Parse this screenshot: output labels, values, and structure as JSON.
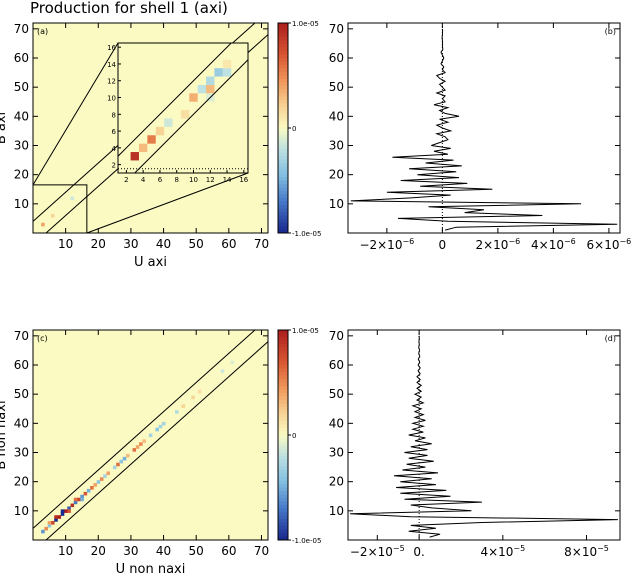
{
  "title": "Production for shell 1 (axi)",
  "chart_data": [
    {
      "id": "a",
      "type": "heatmap",
      "panel_label": "(a)",
      "xlabel": "U axi",
      "ylabel": "B axi",
      "xlim": [
        0,
        72
      ],
      "ylim": [
        0,
        72
      ],
      "ticks": [
        10,
        20,
        30,
        40,
        50,
        60,
        70
      ],
      "background_color": "#fafac2",
      "colorbar": {
        "max_label": "1.0e-05",
        "mid_label": "0",
        "min_label": "-1.0e-05",
        "range": [
          -1e-05,
          1e-05
        ]
      },
      "inset": {
        "xlim": [
          1,
          16.5
        ],
        "ylim": [
          1,
          16.5
        ],
        "ticks": [
          2,
          4,
          6,
          8,
          10,
          12,
          14,
          16
        ],
        "cells": [
          {
            "u": 3,
            "b": 3,
            "v": 9e-06
          },
          {
            "u": 4,
            "b": 4,
            "v": 3e-06
          },
          {
            "u": 5,
            "b": 5,
            "v": 5.5e-06
          },
          {
            "u": 6,
            "b": 6,
            "v": 2e-06
          },
          {
            "u": 7,
            "b": 7,
            "v": -1.5e-06
          },
          {
            "u": 9,
            "b": 8,
            "v": 1.5e-06
          },
          {
            "u": 10,
            "b": 10,
            "v": 3.5e-06
          },
          {
            "u": 11,
            "b": 11,
            "v": -2e-06
          },
          {
            "u": 12,
            "b": 11,
            "v": 3e-06
          },
          {
            "u": 12,
            "b": 12,
            "v": -2.5e-06
          },
          {
            "u": 13,
            "b": 13,
            "v": -3.5e-06
          },
          {
            "u": 14,
            "b": 13,
            "v": -2e-06
          },
          {
            "u": 14,
            "b": 14,
            "v": 1e-06
          },
          {
            "u": 12,
            "b": 10,
            "v": -1e-06
          }
        ]
      },
      "cells": [
        {
          "u": 3,
          "b": 3,
          "v": 4e-06
        },
        {
          "u": 6,
          "b": 6,
          "v": 2e-06
        },
        {
          "u": 12,
          "b": 12,
          "v": -1.5e-06
        }
      ]
    },
    {
      "id": "b",
      "type": "line",
      "panel_label": "(b)",
      "ylim": [
        0,
        72
      ],
      "xlim": [
        -3.4e-06,
        6.4e-06
      ],
      "y_ticks": [
        10,
        20,
        30,
        40,
        50,
        60,
        70
      ],
      "x_ticks": [
        {
          "value": -2e-06,
          "mantissa": "−2×10",
          "exp": "−6"
        },
        {
          "value": 0,
          "mantissa": "0",
          "exp": ""
        },
        {
          "value": 2e-06,
          "mantissa": "2×10",
          "exp": "−6"
        },
        {
          "value": 4e-06,
          "mantissa": "4×10",
          "exp": "−6"
        },
        {
          "value": 6e-06,
          "mantissa": "6×10",
          "exp": "−6"
        }
      ],
      "profile": [
        [
          1e-07,
          1
        ],
        [
          5e-07,
          2
        ],
        [
          6.3e-06,
          3
        ],
        [
          2e-07,
          4
        ],
        [
          -1.6e-06,
          5
        ],
        [
          3.6e-06,
          6
        ],
        [
          8e-07,
          7
        ],
        [
          1.5e-06,
          8
        ],
        [
          -5e-07,
          9
        ],
        [
          5e-06,
          10
        ],
        [
          -3.3e-06,
          11
        ],
        [
          -1.2e-06,
          12
        ],
        [
          3e-07,
          13
        ],
        [
          -2e-06,
          14
        ],
        [
          1.8e-06,
          15
        ],
        [
          -8e-07,
          16
        ],
        [
          9e-07,
          17
        ],
        [
          -1.5e-06,
          18
        ],
        [
          6e-07,
          19
        ],
        [
          -9e-07,
          20
        ],
        [
          5e-07,
          21
        ],
        [
          -1.2e-06,
          22
        ],
        [
          7e-07,
          23
        ],
        [
          -6e-07,
          24
        ],
        [
          4e-07,
          25
        ],
        [
          -1.8e-06,
          26
        ],
        [
          2e-07,
          27
        ],
        [
          -3e-07,
          28
        ],
        [
          3e-07,
          29
        ],
        [
          -4e-07,
          30
        ],
        [
          -1e-07,
          31
        ],
        [
          2e-07,
          32
        ],
        [
          1e-07,
          33
        ],
        [
          -2e-07,
          34
        ],
        [
          3e-07,
          35
        ],
        [
          0.0,
          36
        ],
        [
          -2e-07,
          37
        ],
        [
          2e-07,
          38
        ],
        [
          -1e-07,
          39
        ],
        [
          6e-07,
          40
        ],
        [
          1e-07,
          41
        ],
        [
          -1e-07,
          42
        ],
        [
          2e-07,
          43
        ],
        [
          -3e-07,
          44
        ],
        [
          1e-07,
          45
        ],
        [
          0.0,
          46
        ],
        [
          1e-07,
          47
        ],
        [
          -2e-07,
          48
        ],
        [
          1e-07,
          49
        ],
        [
          0.0,
          50
        ],
        [
          -1e-07,
          51
        ],
        [
          1e-07,
          52
        ],
        [
          -1e-07,
          53
        ],
        [
          -2e-07,
          54
        ],
        [
          1e-07,
          55
        ],
        [
          0.0,
          56
        ],
        [
          5e-08,
          57
        ],
        [
          -5e-08,
          58
        ],
        [
          0.0,
          59
        ],
        [
          5e-08,
          60
        ],
        [
          0.0,
          61
        ],
        [
          -5e-08,
          62
        ],
        [
          2e-08,
          63
        ],
        [
          0.0,
          64
        ],
        [
          1e-08,
          65
        ],
        [
          0.0,
          66
        ],
        [
          -1e-08,
          67
        ],
        [
          0.0,
          68
        ],
        [
          1e-08,
          69
        ],
        [
          0.0,
          70
        ]
      ]
    },
    {
      "id": "c",
      "type": "heatmap",
      "panel_label": "(c)",
      "xlabel": "U non naxi",
      "ylabel": "B non naxi",
      "xlim": [
        0,
        72
      ],
      "ylim": [
        0,
        72
      ],
      "ticks": [
        10,
        20,
        30,
        40,
        50,
        60,
        70
      ],
      "background_color": "#fafac2",
      "colorbar": {
        "max_label": "1.0e-05",
        "mid_label": "0",
        "min_label": "-1.0e-05",
        "range": [
          -1e-05,
          1e-05
        ]
      },
      "cells": [
        {
          "u": 3,
          "b": 3,
          "v": -6e-06
        },
        {
          "u": 4,
          "b": 4,
          "v": 5e-06
        },
        {
          "u": 5,
          "b": 5,
          "v": -4e-06
        },
        {
          "u": 6,
          "b": 6,
          "v": 8e-06
        },
        {
          "u": 7,
          "b": 7,
          "v": -1e-05
        },
        {
          "u": 8,
          "b": 8,
          "v": 1e-05
        },
        {
          "u": 9,
          "b": 9,
          "v": -1e-05
        },
        {
          "u": 10,
          "b": 10,
          "v": 1e-05
        },
        {
          "u": 11,
          "b": 11,
          "v": -8e-06
        },
        {
          "u": 12,
          "b": 12,
          "v": 9e-06
        },
        {
          "u": 13,
          "b": 13,
          "v": -7e-06
        },
        {
          "u": 14,
          "b": 14,
          "v": 8e-06
        },
        {
          "u": 15,
          "b": 15,
          "v": -6e-06
        },
        {
          "u": 16,
          "b": 16,
          "v": 7e-06
        },
        {
          "u": 17,
          "b": 17,
          "v": -5e-06
        },
        {
          "u": 18,
          "b": 18,
          "v": 6e-06
        },
        {
          "u": 19,
          "b": 19,
          "v": 4e-06
        },
        {
          "u": 20,
          "b": 20,
          "v": -4e-06
        },
        {
          "u": 21,
          "b": 21,
          "v": 5e-06
        },
        {
          "u": 22,
          "b": 22,
          "v": -3e-06
        },
        {
          "u": 23,
          "b": 23,
          "v": 4e-06
        },
        {
          "u": 25,
          "b": 25,
          "v": -3e-06
        },
        {
          "u": 26,
          "b": 26,
          "v": 6e-06
        },
        {
          "u": 27,
          "b": 27,
          "v": -4e-06
        },
        {
          "u": 28,
          "b": 28,
          "v": -5e-06
        },
        {
          "u": 29,
          "b": 29,
          "v": 3e-06
        },
        {
          "u": 31,
          "b": 31,
          "v": 6e-06
        },
        {
          "u": 32,
          "b": 32,
          "v": 4e-06
        },
        {
          "u": 33,
          "b": 33,
          "v": 5e-06
        },
        {
          "u": 34,
          "b": 34,
          "v": 3e-06
        },
        {
          "u": 36,
          "b": 36,
          "v": -3e-06
        },
        {
          "u": 38,
          "b": 38,
          "v": -4e-06
        },
        {
          "u": 39,
          "b": 39,
          "v": -3e-06
        },
        {
          "u": 40,
          "b": 40,
          "v": -3e-06
        },
        {
          "u": 44,
          "b": 44,
          "v": -2.5e-06
        },
        {
          "u": 46,
          "b": 46,
          "v": 2e-06
        },
        {
          "u": 49,
          "b": 49,
          "v": 2e-06
        },
        {
          "u": 51,
          "b": 51,
          "v": 1.5e-06
        },
        {
          "u": 58,
          "b": 58,
          "v": -1.5e-06
        },
        {
          "u": 61,
          "b": 61,
          "v": -1e-06
        },
        {
          "u": 9,
          "b": 10,
          "v": -1e-05
        },
        {
          "u": 11,
          "b": 10,
          "v": 7e-06
        },
        {
          "u": 13,
          "b": 14,
          "v": 6e-06
        },
        {
          "u": 15,
          "b": 14,
          "v": -5e-06
        },
        {
          "u": 7,
          "b": 8,
          "v": 9e-06
        },
        {
          "u": 5,
          "b": 6,
          "v": 4e-06
        }
      ]
    },
    {
      "id": "d",
      "type": "line",
      "panel_label": "(d)",
      "ylim": [
        0,
        72
      ],
      "xlim": [
        -3.4e-05,
        9.6e-05
      ],
      "y_ticks": [
        10,
        20,
        30,
        40,
        50,
        60,
        70
      ],
      "x_ticks": [
        {
          "value": -2e-05,
          "mantissa": "−2×10",
          "exp": "−5"
        },
        {
          "value": 0,
          "mantissa": "0.",
          "exp": ""
        },
        {
          "value": 4e-05,
          "mantissa": "4×10",
          "exp": "−5"
        },
        {
          "value": 8e-05,
          "mantissa": "8×10",
          "exp": "−5"
        }
      ],
      "profile": [
        [
          5e-06,
          1
        ],
        [
          1e-05,
          2
        ],
        [
          -5e-06,
          3
        ],
        [
          8e-06,
          4
        ],
        [
          -4e-06,
          5
        ],
        [
          3e-05,
          6
        ],
        [
          9.5e-05,
          7
        ],
        [
          -4e-06,
          8
        ],
        [
          -3.3e-05,
          9
        ],
        [
          2.5e-05,
          10
        ],
        [
          6e-06,
          11
        ],
        [
          -4e-06,
          12
        ],
        [
          3e-05,
          13
        ],
        [
          -7e-06,
          14
        ],
        [
          1.5e-05,
          15
        ],
        [
          -9e-06,
          16
        ],
        [
          1.3e-05,
          17
        ],
        [
          -1.1e-05,
          18
        ],
        [
          8e-06,
          19
        ],
        [
          -9e-06,
          20
        ],
        [
          6e-06,
          21
        ],
        [
          -1.2e-05,
          22
        ],
        [
          9e-06,
          23
        ],
        [
          -8e-06,
          24
        ],
        [
          3e-06,
          25
        ],
        [
          -6e-06,
          26
        ],
        [
          7e-06,
          27
        ],
        [
          -5e-06,
          28
        ],
        [
          4e-06,
          29
        ],
        [
          -7e-06,
          30
        ],
        [
          4e-06,
          31
        ],
        [
          -4e-06,
          32
        ],
        [
          6e-06,
          33
        ],
        [
          -2e-06,
          34
        ],
        [
          3e-06,
          35
        ],
        [
          -5e-06,
          36
        ],
        [
          2e-06,
          37
        ],
        [
          -3e-06,
          38
        ],
        [
          2e-06,
          39
        ],
        [
          -3e-06,
          40
        ],
        [
          3e-06,
          41
        ],
        [
          -2e-06,
          42
        ],
        [
          2e-06,
          43
        ],
        [
          -2e-06,
          44
        ],
        [
          1e-06,
          45
        ],
        [
          -3e-06,
          46
        ],
        [
          2e-06,
          47
        ],
        [
          -1e-06,
          48
        ],
        [
          1e-06,
          49
        ],
        [
          -2e-06,
          50
        ],
        [
          1e-06,
          51
        ],
        [
          -1e-06,
          52
        ],
        [
          1e-06,
          53
        ],
        [
          -1e-06,
          54
        ],
        [
          5e-07,
          55
        ],
        [
          -1e-06,
          56
        ],
        [
          5e-07,
          57
        ],
        [
          -5e-07,
          58
        ],
        [
          5e-07,
          59
        ],
        [
          -5e-07,
          60
        ],
        [
          3e-07,
          61
        ],
        [
          -4e-07,
          62
        ],
        [
          3e-07,
          63
        ],
        [
          -2e-07,
          64
        ],
        [
          2e-07,
          65
        ],
        [
          -2e-07,
          66
        ],
        [
          1e-07,
          67
        ],
        [
          -1e-07,
          68
        ],
        [
          1e-07,
          69
        ],
        [
          0.0,
          70
        ]
      ]
    }
  ]
}
